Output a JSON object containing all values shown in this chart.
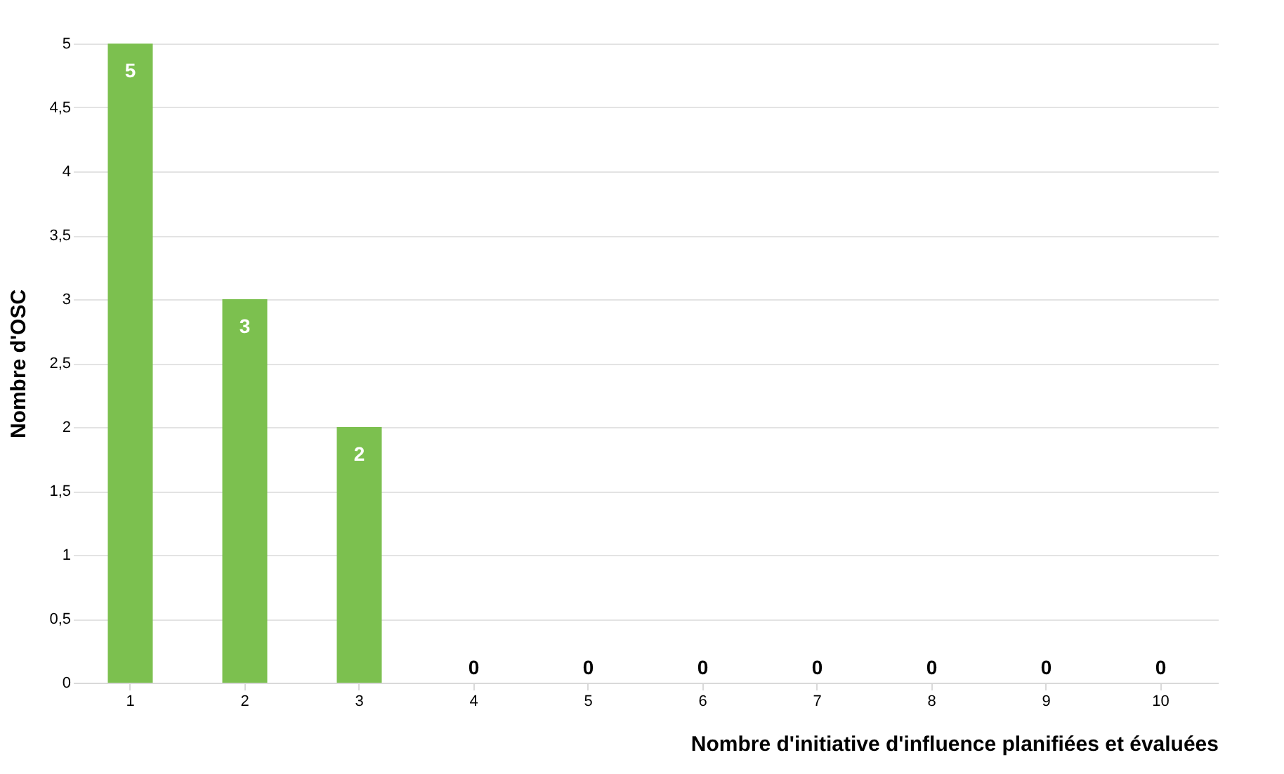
{
  "chart_data": {
    "type": "bar",
    "xlabel": "Nombre d'initiative d'influence planifiées et évaluées",
    "ylabel": "Nombre d'OSC",
    "categories": [
      "1",
      "2",
      "3",
      "4",
      "5",
      "6",
      "7",
      "8",
      "9",
      "10"
    ],
    "values": [
      5,
      3,
      2,
      0,
      0,
      0,
      0,
      0,
      0,
      0
    ],
    "color": "#7cc04f",
    "ylim": [
      0,
      5
    ],
    "yticks": [
      0,
      {
        "value": 0.5,
        "label": "0,5"
      },
      1,
      {
        "value": 1.5,
        "label": "1,5"
      },
      2,
      {
        "value": 2.5,
        "label": "2,5"
      },
      3,
      {
        "value": 3.5,
        "label": "3,5"
      },
      4,
      {
        "value": 4.5,
        "label": "4,5"
      },
      5
    ],
    "grid": "y",
    "data_labels": true
  }
}
